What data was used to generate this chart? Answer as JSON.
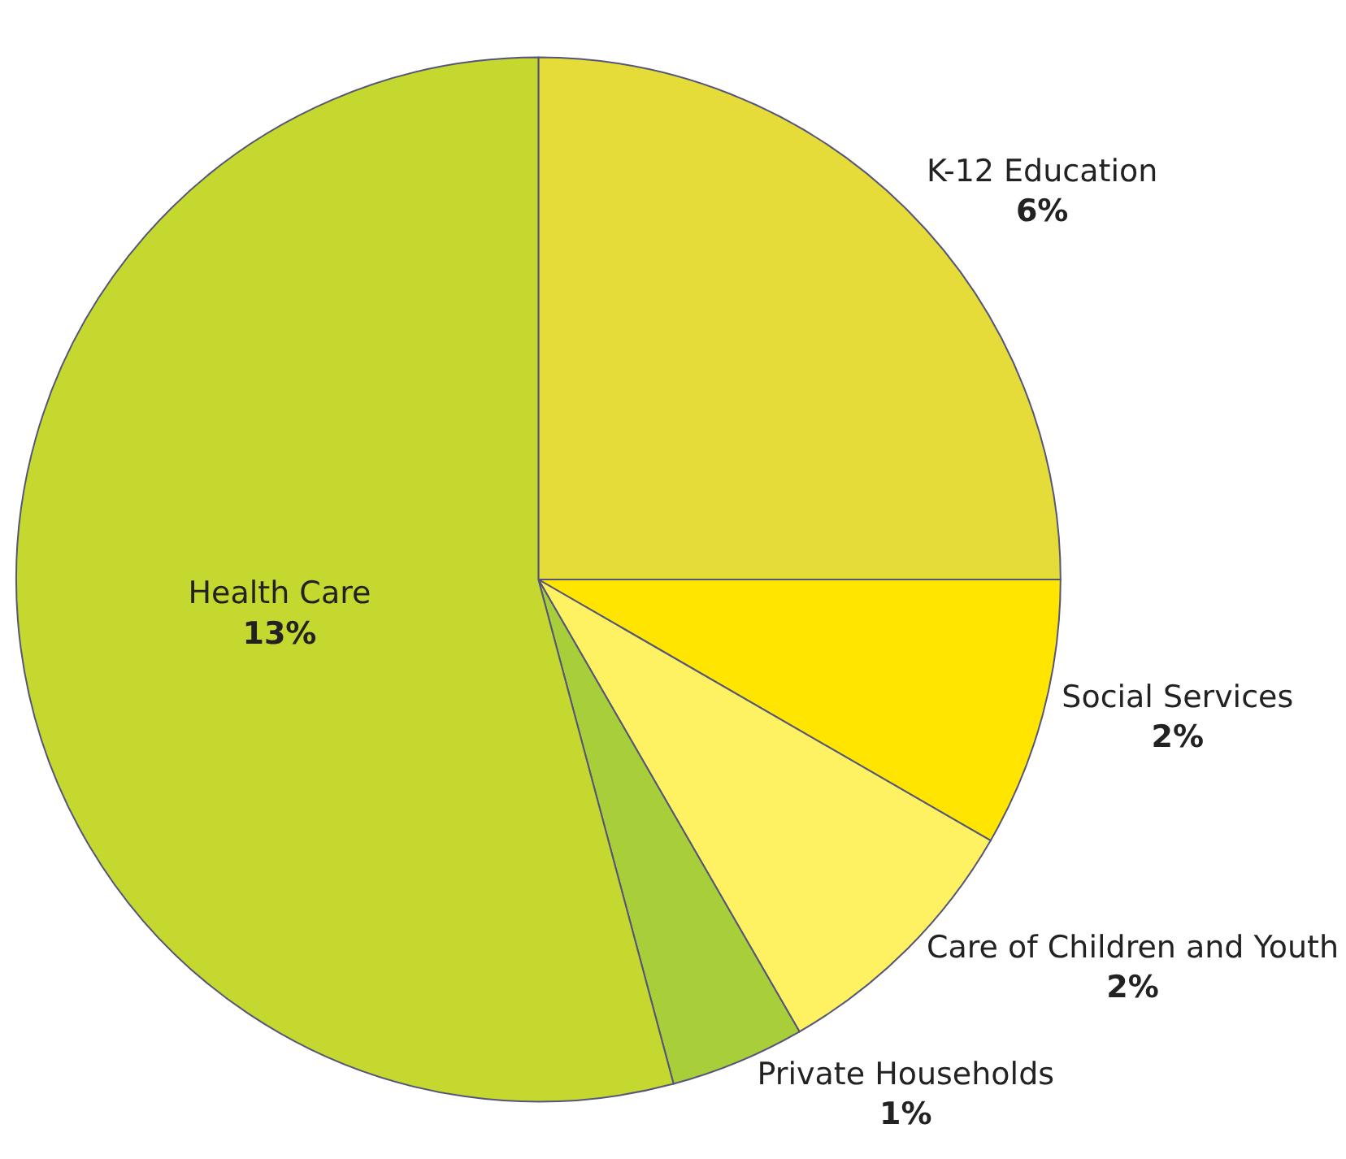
{
  "chart_data": {
    "type": "pie",
    "categories": [
      "K-12 Education",
      "Social Services",
      "Care of Children and Youth",
      "Private Households",
      "Health Care"
    ],
    "values": [
      6,
      2,
      2,
      1,
      13
    ],
    "value_labels": [
      "6%",
      "2%",
      "2%",
      "1%",
      "13%"
    ],
    "colors": [
      "#e5dc3a",
      "#ffe500",
      "#fff262",
      "#a8cf3a",
      "#c5d82f"
    ],
    "legend": false
  }
}
